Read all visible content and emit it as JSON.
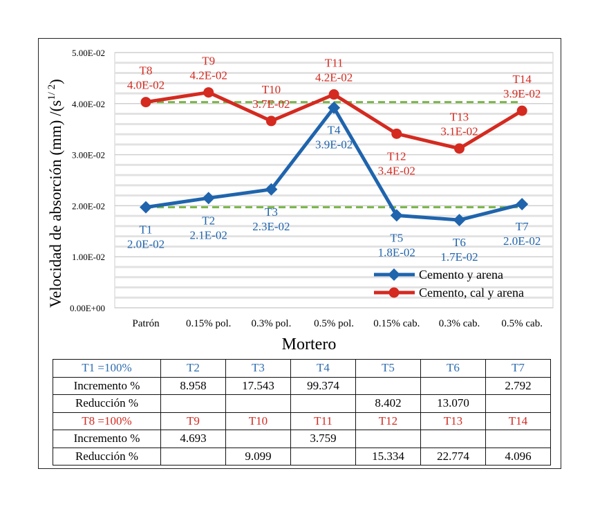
{
  "chart_data": {
    "type": "line",
    "ylabel": "Velocidad de absorción (mm) /(s",
    "ylabel_sup": "1/ 2",
    "ylabel_close": ")",
    "xlabel": "Mortero",
    "categories": [
      "Patrón",
      "0.15% pol.",
      "0.3% pol.",
      "0.5% pol.",
      "0.15% cab.",
      "0.3% cab.",
      "0.5% cab."
    ],
    "ylim": [
      0,
      0.05
    ],
    "yticks": [
      "0.00E+00",
      "1.00E-02",
      "2.00E-02",
      "3.00E-02",
      "4.00E-02",
      "5.00E-02"
    ],
    "grid": true,
    "legend_position": "bottom-right",
    "series": [
      {
        "name": "Cemento y arena",
        "color": "#1f64ad",
        "marker": "diamond",
        "values": [
          0.0197,
          0.0215,
          0.0232,
          0.0392,
          0.0181,
          0.0172,
          0.0203
        ],
        "point_names": [
          "T1",
          "T2",
          "T3",
          "T4",
          "T5",
          "T6",
          "T7"
        ],
        "point_labels": [
          "2.0E-02",
          "2.1E-02",
          "2.3E-02",
          "3.9E-02",
          "1.8E-02",
          "1.7E-02",
          "2.0E-02"
        ]
      },
      {
        "name": "Cemento, cal y arena",
        "color": "#d42a20",
        "marker": "circle",
        "values": [
          0.0403,
          0.0422,
          0.0366,
          0.0418,
          0.0341,
          0.0312,
          0.0386
        ],
        "point_names": [
          "T8",
          "T9",
          "T10",
          "T11",
          "T12",
          "T13",
          "T14"
        ],
        "point_labels": [
          "4.0E-02",
          "4.2E-02",
          "3.7E-02",
          "4.2E-02",
          "3.4E-02",
          "3.1E-02",
          "3.9E-02"
        ]
      }
    ],
    "reference_lines": [
      {
        "value": 0.0403,
        "color": "#7ab648",
        "style": "dashed"
      },
      {
        "value": 0.0197,
        "color": "#7ab648",
        "style": "dashed"
      }
    ]
  },
  "table": {
    "rows": [
      {
        "cls": "blue",
        "cells": [
          "T1 =100%",
          "T2",
          "T3",
          "T4",
          "T5",
          "T6",
          "T7"
        ]
      },
      {
        "cls": "",
        "cells": [
          "Incremento %",
          "8.958",
          "17.543",
          "99.374",
          "",
          "",
          "2.792"
        ]
      },
      {
        "cls": "",
        "cells": [
          "Reducción %",
          "",
          "",
          "",
          "8.402",
          "13.070",
          ""
        ]
      },
      {
        "cls": "red",
        "cells": [
          "T8 =100%",
          "T9",
          "T10",
          "T11",
          "T12",
          "T13",
          "T14"
        ]
      },
      {
        "cls": "",
        "cells": [
          "Incremento %",
          "4.693",
          "",
          "3.759",
          "",
          "",
          ""
        ]
      },
      {
        "cls": "",
        "cells": [
          "Reducción %",
          "",
          "9.099",
          "",
          "15.334",
          "22.774",
          "4.096"
        ]
      }
    ]
  }
}
